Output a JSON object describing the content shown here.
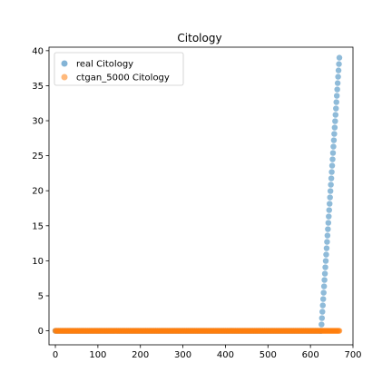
{
  "chart_data": {
    "type": "scatter",
    "title": "Citology",
    "xlabel": "",
    "ylabel": "",
    "xlim": [
      -15,
      700
    ],
    "ylim": [
      -2,
      40.5
    ],
    "xticks": [
      0,
      100,
      200,
      300,
      400,
      500,
      600,
      700
    ],
    "yticks": [
      0,
      5,
      10,
      15,
      20,
      25,
      30,
      35,
      40
    ],
    "grid": false,
    "legend_position": "top-left",
    "series": [
      {
        "name": "real Citology",
        "color": "#1f77b4",
        "note_count": 668,
        "x_range": [
          0,
          668
        ],
        "y": "0 for x<=625, then rising approximately 0.9 per index to 39"
      },
      {
        "name": "ctgan_5000 Citology",
        "color": "#ff7f0e",
        "x_range": [
          0,
          668
        ],
        "y_constant": 0
      }
    ]
  }
}
